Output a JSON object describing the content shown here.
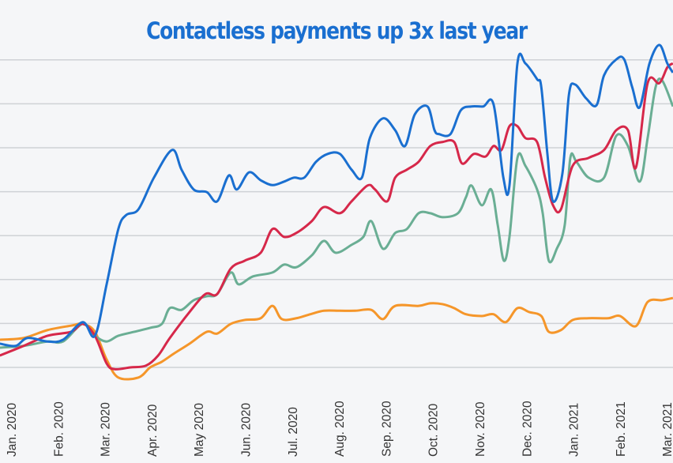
{
  "chart_data": {
    "type": "line",
    "title": "Contactless payments up 3x last year",
    "xlabel": "",
    "ylabel": "",
    "x_ticks": [
      "Jan. 2020",
      "Feb. 2020",
      "Mar. 2020",
      "Apr. 2020",
      "May 2020",
      "Jun. 2020",
      "Jul. 2020",
      "Aug. 2020",
      "Sep. 2020",
      "Oct. 2020",
      "Nov. 2020",
      "Dec. 2020",
      "Jan. 2021",
      "Feb. 2021",
      "Mar. 2021"
    ],
    "xlim": [
      -0.24,
      14.13
    ],
    "ylim": [
      0,
      7
    ],
    "grid": true,
    "y_tick_labels_shown": false,
    "legend": "none",
    "colors": {
      "title": "#1a6fd0",
      "background": "#f5f6f8",
      "grid": "#cfd2d6"
    },
    "series": [
      {
        "color": "#f5962a",
        "points": [
          [
            -0.24,
            0.63
          ],
          [
            0.27,
            0.67
          ],
          [
            0.78,
            0.85
          ],
          [
            1.28,
            0.95
          ],
          [
            1.53,
            0.99
          ],
          [
            1.79,
            0.81
          ],
          [
            2.04,
            0.18
          ],
          [
            2.29,
            -0.23
          ],
          [
            2.72,
            -0.23
          ],
          [
            2.97,
            0
          ],
          [
            3.22,
            0.13
          ],
          [
            3.47,
            0.31
          ],
          [
            3.81,
            0.54
          ],
          [
            4.18,
            0.81
          ],
          [
            4.4,
            0.77
          ],
          [
            4.69,
            0.99
          ],
          [
            4.99,
            1.08
          ],
          [
            5.33,
            1.12
          ],
          [
            5.58,
            1.4
          ],
          [
            5.78,
            1.1
          ],
          [
            6.09,
            1.12
          ],
          [
            6.42,
            1.22
          ],
          [
            6.68,
            1.29
          ],
          [
            7.02,
            1.29
          ],
          [
            7.35,
            1.29
          ],
          [
            7.69,
            1.31
          ],
          [
            7.94,
            1.1
          ],
          [
            8.2,
            1.4
          ],
          [
            8.7,
            1.4
          ],
          [
            8.95,
            1.46
          ],
          [
            9.21,
            1.44
          ],
          [
            9.46,
            1.35
          ],
          [
            9.71,
            1.21
          ],
          [
            10.05,
            1.17
          ],
          [
            10.3,
            1.21
          ],
          [
            10.56,
            1.03
          ],
          [
            10.81,
            1.35
          ],
          [
            11.06,
            1.26
          ],
          [
            11.32,
            1.17
          ],
          [
            11.48,
            0.81
          ],
          [
            11.74,
            0.85
          ],
          [
            11.99,
            1.08
          ],
          [
            12.33,
            1.12
          ],
          [
            12.75,
            1.12
          ],
          [
            13.0,
            1.17
          ],
          [
            13.34,
            0.94
          ],
          [
            13.59,
            1.49
          ],
          [
            13.9,
            1.53
          ],
          [
            14.13,
            1.58
          ]
        ]
      },
      {
        "color": "#6aae94",
        "points": [
          [
            -0.24,
            0.45
          ],
          [
            0.27,
            0.49
          ],
          [
            0.78,
            0.59
          ],
          [
            1.11,
            0.59
          ],
          [
            1.53,
            0.99
          ],
          [
            1.79,
            0.72
          ],
          [
            2.04,
            0.59
          ],
          [
            2.29,
            0.72
          ],
          [
            2.63,
            0.81
          ],
          [
            2.97,
            0.9
          ],
          [
            3.22,
            0.99
          ],
          [
            3.39,
            1.35
          ],
          [
            3.64,
            1.31
          ],
          [
            3.9,
            1.53
          ],
          [
            4.18,
            1.62
          ],
          [
            4.4,
            1.67
          ],
          [
            4.69,
            2.16
          ],
          [
            4.86,
            1.89
          ],
          [
            5.16,
            2.07
          ],
          [
            5.58,
            2.16
          ],
          [
            5.83,
            2.34
          ],
          [
            6.09,
            2.28
          ],
          [
            6.42,
            2.55
          ],
          [
            6.68,
            2.88
          ],
          [
            6.93,
            2.61
          ],
          [
            7.27,
            2.79
          ],
          [
            7.52,
            2.97
          ],
          [
            7.69,
            3.33
          ],
          [
            7.94,
            2.7
          ],
          [
            8.2,
            3.06
          ],
          [
            8.45,
            3.15
          ],
          [
            8.7,
            3.51
          ],
          [
            8.95,
            3.51
          ],
          [
            9.21,
            3.42
          ],
          [
            9.54,
            3.51
          ],
          [
            9.71,
            3.87
          ],
          [
            9.83,
            4.14
          ],
          [
            10.05,
            3.69
          ],
          [
            10.25,
            4.05
          ],
          [
            10.39,
            3.24
          ],
          [
            10.52,
            2.43
          ],
          [
            10.64,
            2.97
          ],
          [
            10.81,
            4.77
          ],
          [
            10.98,
            4.59
          ],
          [
            11.23,
            4.05
          ],
          [
            11.35,
            3.51
          ],
          [
            11.48,
            2.43
          ],
          [
            11.65,
            2.7
          ],
          [
            11.82,
            3.24
          ],
          [
            11.94,
            4.77
          ],
          [
            12.07,
            4.68
          ],
          [
            12.33,
            4.32
          ],
          [
            12.66,
            4.32
          ],
          [
            12.92,
            5.27
          ],
          [
            13.17,
            5.04
          ],
          [
            13.42,
            4.23
          ],
          [
            13.59,
            5.22
          ],
          [
            13.76,
            6.38
          ],
          [
            13.9,
            6.53
          ],
          [
            14.13,
            5.94
          ]
        ]
      },
      {
        "color": "#d6284a",
        "points": [
          [
            -0.24,
            0.27
          ],
          [
            0.27,
            0.49
          ],
          [
            0.78,
            0.72
          ],
          [
            1.28,
            0.81
          ],
          [
            1.53,
            0.99
          ],
          [
            1.79,
            0.72
          ],
          [
            2.04,
            0.09
          ],
          [
            2.21,
            -0.04
          ],
          [
            2.55,
            0
          ],
          [
            2.88,
            0.04
          ],
          [
            3.14,
            0.27
          ],
          [
            3.39,
            0.67
          ],
          [
            3.81,
            1.26
          ],
          [
            4.15,
            1.67
          ],
          [
            4.4,
            1.67
          ],
          [
            4.69,
            2.25
          ],
          [
            4.99,
            2.43
          ],
          [
            5.33,
            2.61
          ],
          [
            5.58,
            3.15
          ],
          [
            5.83,
            2.97
          ],
          [
            6.09,
            3.06
          ],
          [
            6.42,
            3.33
          ],
          [
            6.68,
            3.65
          ],
          [
            7.02,
            3.51
          ],
          [
            7.27,
            3.78
          ],
          [
            7.61,
            4.14
          ],
          [
            7.77,
            4.05
          ],
          [
            8.03,
            3.78
          ],
          [
            8.2,
            4.32
          ],
          [
            8.45,
            4.5
          ],
          [
            8.7,
            4.68
          ],
          [
            8.95,
            5.04
          ],
          [
            9.21,
            5.13
          ],
          [
            9.46,
            5.13
          ],
          [
            9.63,
            4.64
          ],
          [
            9.88,
            4.86
          ],
          [
            10.13,
            4.8
          ],
          [
            10.3,
            5.04
          ],
          [
            10.47,
            4.95
          ],
          [
            10.64,
            5.49
          ],
          [
            10.81,
            5.49
          ],
          [
            10.98,
            5.22
          ],
          [
            11.23,
            5.13
          ],
          [
            11.4,
            4.32
          ],
          [
            11.57,
            3.69
          ],
          [
            11.74,
            3.6
          ],
          [
            11.99,
            4.59
          ],
          [
            12.33,
            4.77
          ],
          [
            12.66,
            4.95
          ],
          [
            12.92,
            5.4
          ],
          [
            13.17,
            5.4
          ],
          [
            13.34,
            4.55
          ],
          [
            13.59,
            6.47
          ],
          [
            13.84,
            6.47
          ],
          [
            14.01,
            6.83
          ],
          [
            14.13,
            6.92
          ]
        ]
      },
      {
        "color": "#1a6fd0",
        "points": [
          [
            -0.24,
            0.54
          ],
          [
            0.1,
            0.49
          ],
          [
            0.35,
            0.67
          ],
          [
            0.78,
            0.59
          ],
          [
            1.11,
            0.63
          ],
          [
            1.53,
            1.03
          ],
          [
            1.79,
            0.72
          ],
          [
            2.04,
            1.89
          ],
          [
            2.29,
            3.15
          ],
          [
            2.46,
            3.47
          ],
          [
            2.72,
            3.6
          ],
          [
            3.05,
            4.32
          ],
          [
            3.44,
            4.95
          ],
          [
            3.64,
            4.5
          ],
          [
            3.9,
            4.05
          ],
          [
            4.18,
            3.99
          ],
          [
            4.4,
            3.78
          ],
          [
            4.65,
            4.37
          ],
          [
            4.82,
            4.05
          ],
          [
            5.08,
            4.44
          ],
          [
            5.33,
            4.26
          ],
          [
            5.58,
            4.15
          ],
          [
            5.83,
            4.23
          ],
          [
            6.04,
            4.32
          ],
          [
            6.26,
            4.32
          ],
          [
            6.51,
            4.68
          ],
          [
            6.76,
            4.86
          ],
          [
            7.02,
            4.86
          ],
          [
            7.27,
            4.5
          ],
          [
            7.49,
            4.32
          ],
          [
            7.66,
            5.22
          ],
          [
            7.94,
            5.67
          ],
          [
            8.2,
            5.4
          ],
          [
            8.41,
            5.04
          ],
          [
            8.62,
            5.76
          ],
          [
            8.89,
            5.94
          ],
          [
            9.04,
            5.4
          ],
          [
            9.14,
            5.31
          ],
          [
            9.38,
            5.31
          ],
          [
            9.6,
            5.85
          ],
          [
            9.83,
            5.94
          ],
          [
            10.08,
            5.94
          ],
          [
            10.3,
            5.99
          ],
          [
            10.51,
            4.32
          ],
          [
            10.64,
            4.14
          ],
          [
            10.81,
            6.92
          ],
          [
            10.98,
            6.92
          ],
          [
            11.23,
            6.56
          ],
          [
            11.32,
            6.38
          ],
          [
            11.45,
            4.86
          ],
          [
            11.57,
            3.78
          ],
          [
            11.77,
            4.41
          ],
          [
            11.91,
            6.21
          ],
          [
            12.04,
            6.44
          ],
          [
            12.28,
            6.12
          ],
          [
            12.5,
            5.97
          ],
          [
            12.66,
            6.65
          ],
          [
            12.92,
            7.01
          ],
          [
            13.09,
            7.01
          ],
          [
            13.26,
            6.38
          ],
          [
            13.42,
            5.92
          ],
          [
            13.63,
            6.92
          ],
          [
            13.84,
            7.34
          ],
          [
            14.01,
            6.92
          ],
          [
            14.13,
            6.71
          ]
        ]
      }
    ]
  }
}
